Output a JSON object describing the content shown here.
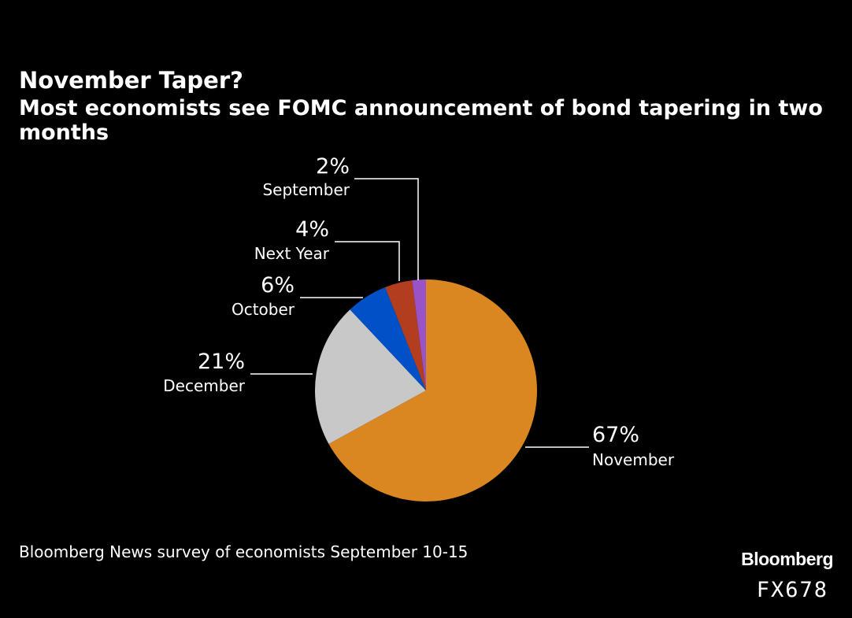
{
  "header": {
    "title": "November Taper?",
    "subtitle": "Most economists see FOMC announcement of bond tapering in two months"
  },
  "footer": {
    "source": "Bloomberg News survey of economists September 10-15",
    "brand": "Bloomberg",
    "code": "FX678"
  },
  "chart_data": {
    "type": "pie",
    "title": "November Taper?",
    "subtitle": "Most economists see FOMC announcement of bond tapering in two months",
    "slices": [
      {
        "label": "November",
        "value": 67,
        "value_label": "67%",
        "color": "#db8721"
      },
      {
        "label": "December",
        "value": 21,
        "value_label": "21%",
        "color": "#c8c8c8"
      },
      {
        "label": "October",
        "value": 6,
        "value_label": "6%",
        "color": "#0051c7"
      },
      {
        "label": "Next Year",
        "value": 4,
        "value_label": "4%",
        "color": "#b33d1f"
      },
      {
        "label": "September",
        "value": 2,
        "value_label": "2%",
        "color": "#9a53c6"
      }
    ],
    "start_angle": "12 o'clock",
    "direction": "clockwise",
    "legend": "none"
  }
}
